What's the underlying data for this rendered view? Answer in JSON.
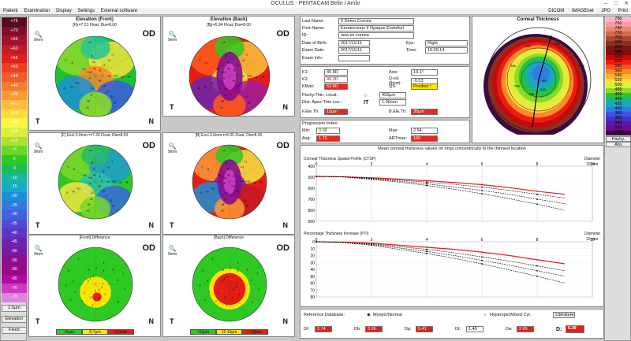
{
  "title": "OCULUS - PENTACAM  Belin / Ambr",
  "menu": {
    "left": [
      "Patient",
      "Examination",
      "Display",
      "Settings",
      "External software"
    ],
    "right": [
      "DICOM",
      "IMAGEnet",
      "JPG",
      "Print"
    ]
  },
  "left_scale": {
    "values": [
      "+75",
      "+70",
      "+65",
      "+60",
      "+55",
      "+50",
      "+45",
      "+40",
      "+35",
      "+30",
      "+25",
      "+20",
      "+15",
      "+10",
      "+5",
      "0",
      "-5",
      "-10",
      "-15",
      "-20",
      "-25",
      "-30",
      "-35",
      "-40",
      "-45",
      "-50",
      "-55",
      "-60",
      "-65",
      "-70",
      "-75"
    ],
    "step": "2.5µm",
    "mode": "Elevation",
    "fixed": "Fixed"
  },
  "right_scale": {
    "values": [
      "780",
      "760",
      "740",
      "720",
      "700",
      "680",
      "660",
      "640",
      "620",
      "600",
      "580",
      "560",
      "540",
      "520",
      "500",
      "480",
      "460",
      "440",
      "420",
      "400",
      "380",
      "360",
      "340",
      "320",
      "300"
    ],
    "mode": "Pachy.",
    "abs": "Abs"
  },
  "maps": [
    {
      "title": "Elevation (Front)",
      "sub": "[F]r=7.21 Float, Dia=8.00"
    },
    {
      "title": "Elevation (Back)",
      "sub": "[B]r=5.94 Float, Dia=8.00"
    },
    {
      "title": "",
      "sub": "[F] Excl.3.0mm r=7.26 Float, Dia=8.00"
    },
    {
      "title": "",
      "sub": "[B] Excl.3.0mm r=6.05 Float, Dia=8.00"
    },
    {
      "title": "",
      "sub": "[Front] Difference"
    },
    {
      "title": "",
      "sub": "[Back] Difference"
    }
  ],
  "eye": "OD",
  "t": "T",
  "n": "N",
  "mm": "9mm",
  "legend_front": [
    "<5µm",
    "5-7µm",
    ">12µm"
  ],
  "legend_back": [
    "<12µm",
    "12-16µm",
    ">16µm"
  ],
  "patient": {
    "last_name_label": "Last Name:",
    "last_name": "6 Demo Cornea",
    "first_name_label": "First Name:",
    "first_name": "Keratoconus II Opaque Endothel",
    "id_label": "ID:",
    "id": "new ex cornea",
    "dob_label": "Date of Birth:",
    "dob": "2017/11/11",
    "eye_label": "Eye:",
    "eye": "Right",
    "exam_label": "Exam Date:",
    "exam_date": "2017/11/11",
    "time_label": "Time:",
    "time": "15:20:14",
    "exam_info_label": "Exam Info:",
    "exam_info": ""
  },
  "k": {
    "k1_label": "K1:",
    "k1": "45.8D",
    "axis_label": "Axis:",
    "axis": "19.1°",
    "k2_label": "K2:",
    "k2": "49.2D",
    "q_label": "Q-val. (8mm):",
    "q": "-0.53",
    "kmax_label": "KMax:",
    "kmax": "53.8D",
    "qs_label": "QS:",
    "qs": "Position !",
    "pachy_label": "Pachy.Thin. Local.:",
    "pachy": "493µm",
    "dist_label": "Dist. Apex-Thin Loc.:",
    "dist": "1.06mm",
    "it": "IT",
    "fele_label": "F.Ele.Th:",
    "fele": "13µm",
    "bele_label": "B.Ele.Th:",
    "bele": "35µm"
  },
  "progression": {
    "title": "Progression Index:",
    "min_label": "Min:",
    "min": "0.98",
    "max_label": "Max:",
    "max": "2.54",
    "avg_label": "Avg:",
    "avg": "1.70",
    "art_label": "ARTmax:",
    "art": "160"
  },
  "cornea": {
    "title": "Corneal Thickness",
    "values": [
      "493",
      "510",
      "525",
      "540",
      "560",
      "580",
      "600",
      "620"
    ]
  },
  "charts": {
    "header": "Mean corneal thickness values on rings concentrically to the thinnest location",
    "ctsp": {
      "title": "Corneal Thickness Spatial Profile (CTSP)",
      "xlabel": "Diameter",
      "unit": "10 mm"
    },
    "pti": {
      "title": "Percentage Thickness Increase (PTI)",
      "xlabel": "Diameter",
      "unit": "10 mm"
    }
  },
  "chart_data": [
    {
      "type": "line",
      "title": "Corneal Thickness Spatial Profile (CTSP)",
      "xlabel": "Diameter",
      "ylabel": "µm",
      "xlim": [
        0,
        10
      ],
      "ylim": [
        400,
        900
      ],
      "x": [
        0,
        1,
        2,
        3,
        4,
        5,
        6,
        7,
        8,
        9,
        10
      ],
      "series": [
        {
          "values": [
            493,
            496,
            505,
            518,
            532,
            548,
            568,
            595,
            628,
            655,
            690
          ]
        },
        {
          "values": [
            493,
            497,
            510,
            526,
            545,
            565,
            590,
            620,
            655,
            690,
            720
          ]
        },
        {
          "values": [
            493,
            498,
            515,
            536,
            560,
            590,
            620,
            655,
            700,
            740,
            790
          ]
        },
        {
          "values": [
            493,
            499,
            520,
            545,
            575,
            610,
            650,
            695,
            745,
            800,
            850
          ]
        }
      ]
    },
    {
      "type": "line",
      "title": "Percentage Thickness Increase (PTI)",
      "xlabel": "Diameter",
      "ylabel": "%",
      "xlim": [
        0,
        10
      ],
      "ylim": [
        0,
        80
      ],
      "x": [
        0,
        1,
        2,
        3,
        4,
        5,
        6,
        7,
        8,
        9,
        10
      ],
      "series": [
        {
          "values": [
            0,
            0.5,
            2,
            5,
            8,
            11,
            15,
            20,
            26,
            32,
            38
          ]
        },
        {
          "values": [
            0,
            0.7,
            3,
            7,
            11,
            16,
            22,
            28,
            35,
            42,
            48
          ]
        },
        {
          "values": [
            0,
            1,
            4,
            9,
            14,
            20,
            27,
            34,
            42,
            50,
            58
          ]
        },
        {
          "values": [
            0,
            1.2,
            5,
            11,
            17,
            24,
            32,
            41,
            50,
            60,
            70
          ]
        }
      ]
    }
  ],
  "reference": {
    "label": "Reference Database:",
    "opt1": "Myopic/Normal",
    "opt2": "Hyperopic/Mixed Cyl.",
    "btn": "Literature"
  },
  "bad": [
    {
      "label": "Df:",
      "value": "2.74"
    },
    {
      "label": "Db:",
      "value": "3.96"
    },
    {
      "label": "Dp:",
      "value": "5.41"
    },
    {
      "label": "Dt:",
      "value": "1.40"
    },
    {
      "label": "Da:",
      "value": "2.69"
    }
  ],
  "d_final": {
    "label": "D:",
    "value": "5.39"
  }
}
